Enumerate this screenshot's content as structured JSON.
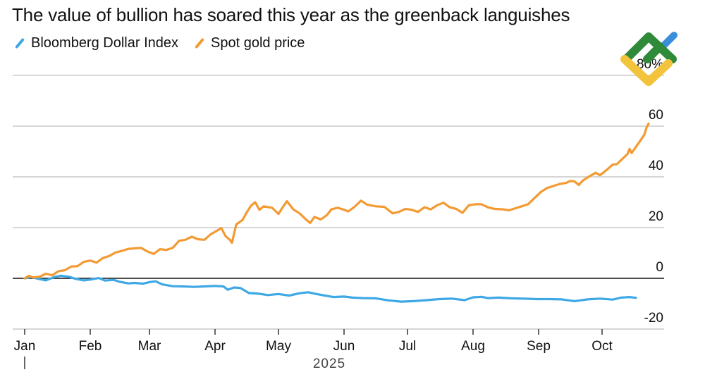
{
  "chart_data": {
    "type": "line",
    "title": "The value of bullion has soared this year as the greenback languishes",
    "xlabel": "2025",
    "ylabel": "",
    "ylim": [
      -20,
      80
    ],
    "y_ticks": [
      {
        "value": 80,
        "label": "80%"
      },
      {
        "value": 60,
        "label": "60"
      },
      {
        "value": 40,
        "label": "40"
      },
      {
        "value": 20,
        "label": "20"
      },
      {
        "value": 0,
        "label": "0"
      },
      {
        "value": -20,
        "label": "-20"
      }
    ],
    "x_ticks": [
      {
        "day": 0,
        "label": "Jan"
      },
      {
        "day": 31,
        "label": "Feb"
      },
      {
        "day": 59,
        "label": "Mar"
      },
      {
        "day": 90,
        "label": "Apr"
      },
      {
        "day": 120,
        "label": "May"
      },
      {
        "day": 151,
        "label": "Jun"
      },
      {
        "day": 181,
        "label": "Jul"
      },
      {
        "day": 212,
        "label": "Aug"
      },
      {
        "day": 243,
        "label": "Sep"
      },
      {
        "day": 273,
        "label": "Oct"
      }
    ],
    "xlim_days": [
      0,
      289
    ],
    "grid": true,
    "legend_position": "top-left",
    "series": [
      {
        "name": "Bloomberg Dollar Index",
        "color": "#3ea8e5",
        "points": [
          [
            0,
            0
          ],
          [
            3,
            0.5
          ],
          [
            7,
            -0.3
          ],
          [
            10,
            -0.8
          ],
          [
            14,
            0.5
          ],
          [
            17,
            1.0
          ],
          [
            21,
            0.6
          ],
          [
            24,
            -0.2
          ],
          [
            28,
            -0.8
          ],
          [
            31,
            -0.5
          ],
          [
            35,
            0.1
          ],
          [
            38,
            -0.9
          ],
          [
            42,
            -0.6
          ],
          [
            45,
            -1.4
          ],
          [
            49,
            -2.0
          ],
          [
            52,
            -1.8
          ],
          [
            56,
            -2.1
          ],
          [
            59,
            -1.5
          ],
          [
            62,
            -1.2
          ],
          [
            65,
            -2.4
          ],
          [
            70,
            -3.1
          ],
          [
            75,
            -3.2
          ],
          [
            80,
            -3.4
          ],
          [
            85,
            -3.2
          ],
          [
            90,
            -3.0
          ],
          [
            94,
            -3.2
          ],
          [
            96,
            -4.5
          ],
          [
            99,
            -3.6
          ],
          [
            102,
            -3.8
          ],
          [
            106,
            -5.8
          ],
          [
            110,
            -6.0
          ],
          [
            115,
            -6.6
          ],
          [
            120,
            -6.2
          ],
          [
            125,
            -6.8
          ],
          [
            130,
            -5.9
          ],
          [
            134,
            -5.5
          ],
          [
            138,
            -6.2
          ],
          [
            142,
            -6.8
          ],
          [
            146,
            -7.4
          ],
          [
            151,
            -7.2
          ],
          [
            155,
            -7.6
          ],
          [
            160,
            -7.8
          ],
          [
            166,
            -7.9
          ],
          [
            172,
            -8.7
          ],
          [
            178,
            -9.2
          ],
          [
            184,
            -9.0
          ],
          [
            190,
            -8.6
          ],
          [
            196,
            -8.2
          ],
          [
            202,
            -8.0
          ],
          [
            208,
            -8.6
          ],
          [
            212,
            -7.5
          ],
          [
            216,
            -7.3
          ],
          [
            219,
            -7.8
          ],
          [
            224,
            -7.6
          ],
          [
            230,
            -7.9
          ],
          [
            236,
            -8.0
          ],
          [
            242,
            -8.2
          ],
          [
            248,
            -8.2
          ],
          [
            254,
            -8.3
          ],
          [
            260,
            -9.0
          ],
          [
            266,
            -8.3
          ],
          [
            272,
            -8.0
          ],
          [
            278,
            -8.4
          ],
          [
            282,
            -7.6
          ],
          [
            286,
            -7.4
          ],
          [
            289,
            -7.7
          ]
        ]
      },
      {
        "name": "Spot gold price",
        "color": "#f39a33",
        "points": [
          [
            0,
            0
          ],
          [
            2,
            1.0
          ],
          [
            4,
            0.3
          ],
          [
            7,
            0.6
          ],
          [
            10,
            1.8
          ],
          [
            13,
            1.2
          ],
          [
            16,
            2.8
          ],
          [
            19,
            3.2
          ],
          [
            22,
            4.6
          ],
          [
            25,
            4.8
          ],
          [
            28,
            6.5
          ],
          [
            31,
            7.0
          ],
          [
            34,
            6.2
          ],
          [
            37,
            8.0
          ],
          [
            40,
            8.8
          ],
          [
            43,
            10.2
          ],
          [
            46,
            10.8
          ],
          [
            49,
            11.6
          ],
          [
            52,
            11.8
          ],
          [
            55,
            12.0
          ],
          [
            58,
            10.6
          ],
          [
            61,
            9.6
          ],
          [
            64,
            11.5
          ],
          [
            67,
            11.2
          ],
          [
            70,
            12.0
          ],
          [
            73,
            14.8
          ],
          [
            76,
            15.2
          ],
          [
            79,
            16.4
          ],
          [
            82,
            15.4
          ],
          [
            85,
            15.2
          ],
          [
            88,
            17.4
          ],
          [
            91,
            18.8
          ],
          [
            93,
            19.8
          ],
          [
            95,
            16.6
          ],
          [
            97,
            15.2
          ],
          [
            98,
            14.0
          ],
          [
            100,
            21.2
          ],
          [
            103,
            23.0
          ],
          [
            105,
            26.0
          ],
          [
            107,
            28.6
          ],
          [
            109,
            30.0
          ],
          [
            111,
            27.0
          ],
          [
            113,
            28.4
          ],
          [
            117,
            27.8
          ],
          [
            120,
            25.4
          ],
          [
            122,
            28.0
          ],
          [
            124,
            30.4
          ],
          [
            127,
            27.2
          ],
          [
            130,
            25.6
          ],
          [
            133,
            23.2
          ],
          [
            135,
            21.8
          ],
          [
            137,
            24.2
          ],
          [
            140,
            23.2
          ],
          [
            143,
            25.0
          ],
          [
            145,
            27.2
          ],
          [
            148,
            27.8
          ],
          [
            151,
            27.0
          ],
          [
            153,
            26.4
          ],
          [
            156,
            28.2
          ],
          [
            159,
            30.6
          ],
          [
            162,
            29.0
          ],
          [
            166,
            28.4
          ],
          [
            170,
            28.2
          ],
          [
            174,
            25.6
          ],
          [
            177,
            26.2
          ],
          [
            180,
            27.4
          ],
          [
            183,
            27.0
          ],
          [
            186,
            26.2
          ],
          [
            189,
            28.0
          ],
          [
            192,
            27.2
          ],
          [
            195,
            28.8
          ],
          [
            198,
            29.8
          ],
          [
            201,
            28.0
          ],
          [
            204,
            27.4
          ],
          [
            207,
            25.8
          ],
          [
            210,
            28.8
          ],
          [
            213,
            29.2
          ],
          [
            216,
            29.2
          ],
          [
            219,
            28.0
          ],
          [
            222,
            27.4
          ],
          [
            226,
            27.2
          ],
          [
            229,
            26.8
          ],
          [
            232,
            27.6
          ],
          [
            235,
            28.4
          ],
          [
            238,
            29.2
          ],
          [
            241,
            31.6
          ],
          [
            244,
            34.0
          ],
          [
            247,
            35.6
          ],
          [
            250,
            36.4
          ],
          [
            253,
            37.2
          ],
          [
            256,
            37.6
          ],
          [
            258,
            38.4
          ],
          [
            260,
            38.2
          ],
          [
            262,
            36.8
          ],
          [
            264,
            38.6
          ],
          [
            267,
            40.2
          ],
          [
            270,
            41.6
          ],
          [
            272,
            40.6
          ],
          [
            275,
            42.6
          ],
          [
            278,
            44.8
          ],
          [
            280,
            45.0
          ],
          [
            283,
            47.4
          ],
          [
            285,
            49.0
          ],
          [
            286,
            51.0
          ],
          [
            287,
            49.4
          ],
          [
            289,
            51.8
          ],
          [
            291,
            54.2
          ],
          [
            293,
            56.6
          ],
          [
            294,
            59.4
          ],
          [
            295,
            61.0
          ]
        ]
      }
    ]
  }
}
